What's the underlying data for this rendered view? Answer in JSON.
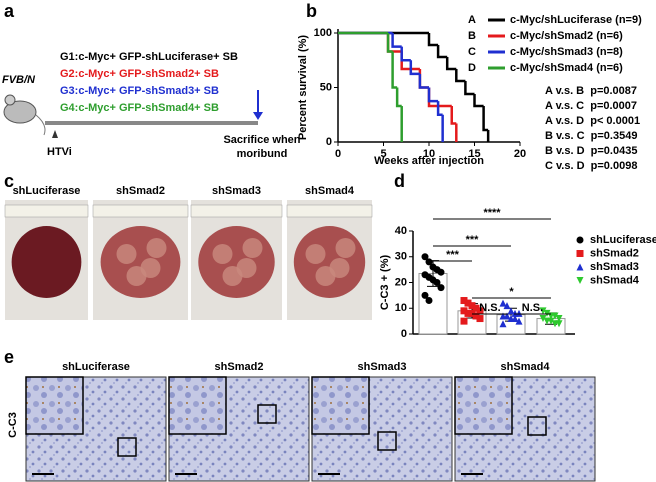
{
  "panel_labels": [
    "a",
    "b",
    "c",
    "d",
    "e"
  ],
  "panel_a": {
    "strain": "FVB/N",
    "groups": [
      "G1:c-Myc+ GFP-shLuciferase+ SB",
      "G2:c-Myc+ GFP-shSmad2+ SB",
      "G3:c-Myc+ GFP-shSmad3+ SB",
      "G4:c-Myc+ GFP-shSmad4+ SB"
    ],
    "group_colors": [
      "#000000",
      "#e41a1c",
      "#1f2fd0",
      "#2e9e2e"
    ],
    "injection": "HTVi",
    "endpoint": [
      "Sacrifice when",
      "moribund"
    ]
  },
  "panel_c": {
    "labels": [
      "shLuciferase",
      "shSmad2",
      "shSmad3",
      "shSmad4"
    ]
  },
  "panel_e": {
    "stain": "C-C3",
    "labels": [
      "shLuciferase",
      "shSmad2",
      "shSmad3",
      "shSmad4"
    ]
  },
  "chart_data": [
    {
      "type": "step",
      "xlabel": "Weeks after injection",
      "ylabel": "Percent survival (%)",
      "xlim": [
        0,
        20
      ],
      "xticks": [
        0,
        5,
        10,
        15,
        20
      ],
      "ylim": [
        0,
        100
      ],
      "yticks": [
        0,
        50,
        100
      ],
      "series": [
        {
          "letter": "A",
          "name": "c-Myc/shLuciferase (n=9)",
          "color": "#000000",
          "x": [
            0,
            10,
            11,
            12,
            13,
            14,
            15,
            16,
            16.5
          ],
          "values": [
            100,
            89,
            78,
            67,
            56,
            44,
            33,
            11,
            0
          ]
        },
        {
          "letter": "B",
          "name": "c-Myc/shSmad2 (n=6)",
          "color": "#e41a1c",
          "x": [
            0,
            5.5,
            7,
            9,
            10,
            12.5,
            13
          ],
          "values": [
            100,
            83,
            67,
            50,
            33,
            17,
            0
          ]
        },
        {
          "letter": "C",
          "name": "c-Myc/shSmad3 (n=8)",
          "color": "#1f2fd0",
          "x": [
            0,
            6,
            7,
            8,
            9,
            10,
            11,
            11.5
          ],
          "values": [
            100,
            87.5,
            75,
            62.5,
            50,
            37.5,
            25,
            0
          ]
        },
        {
          "letter": "D",
          "name": "c-Myc/shSmad4 (n=6)",
          "color": "#2e9e2e",
          "x": [
            0,
            5.5,
            6,
            6.5,
            7
          ],
          "values": [
            100,
            83,
            50,
            33,
            0
          ]
        }
      ],
      "annotations": [
        "A v.s. B  p=0.0087",
        "A v.s. C  p=0.0007",
        "A v.s. D  p< 0.0001",
        "B v.s. C  p=0.3549",
        "B v.s. D  p=0.0435",
        "C v.s. D  p=0.0098"
      ]
    },
    {
      "type": "dotbar",
      "ylabel": "C-C3 + (%)",
      "ylim": [
        0,
        40
      ],
      "yticks": [
        0,
        10,
        20,
        30,
        40
      ],
      "categories": [
        "shLuciferase",
        "shSmad2",
        "shSmad3",
        "shSmad4"
      ],
      "colors": [
        "#000000",
        "#e41a1c",
        "#1f2fd0",
        "#2ec92e"
      ],
      "markers": [
        "circle",
        "square",
        "triangle-up",
        "triangle-down"
      ],
      "values": [
        23.5,
        9,
        7.5,
        6
      ],
      "errors": [
        5,
        2.8,
        2.5,
        2.2
      ],
      "points": [
        [
          30,
          28,
          26,
          25,
          24,
          23,
          22,
          21,
          20,
          18,
          15,
          13
        ],
        [
          13,
          12,
          11,
          10,
          9,
          9,
          8,
          8,
          7,
          6,
          5
        ],
        [
          12,
          11,
          9,
          8,
          8,
          7,
          7,
          6,
          6,
          5,
          4
        ],
        [
          9,
          8,
          7,
          7,
          6,
          6,
          5,
          5,
          4,
          4
        ]
      ],
      "annotations": [
        "****",
        "***",
        "***",
        "*",
        "N.S.",
        "N.S."
      ]
    }
  ]
}
